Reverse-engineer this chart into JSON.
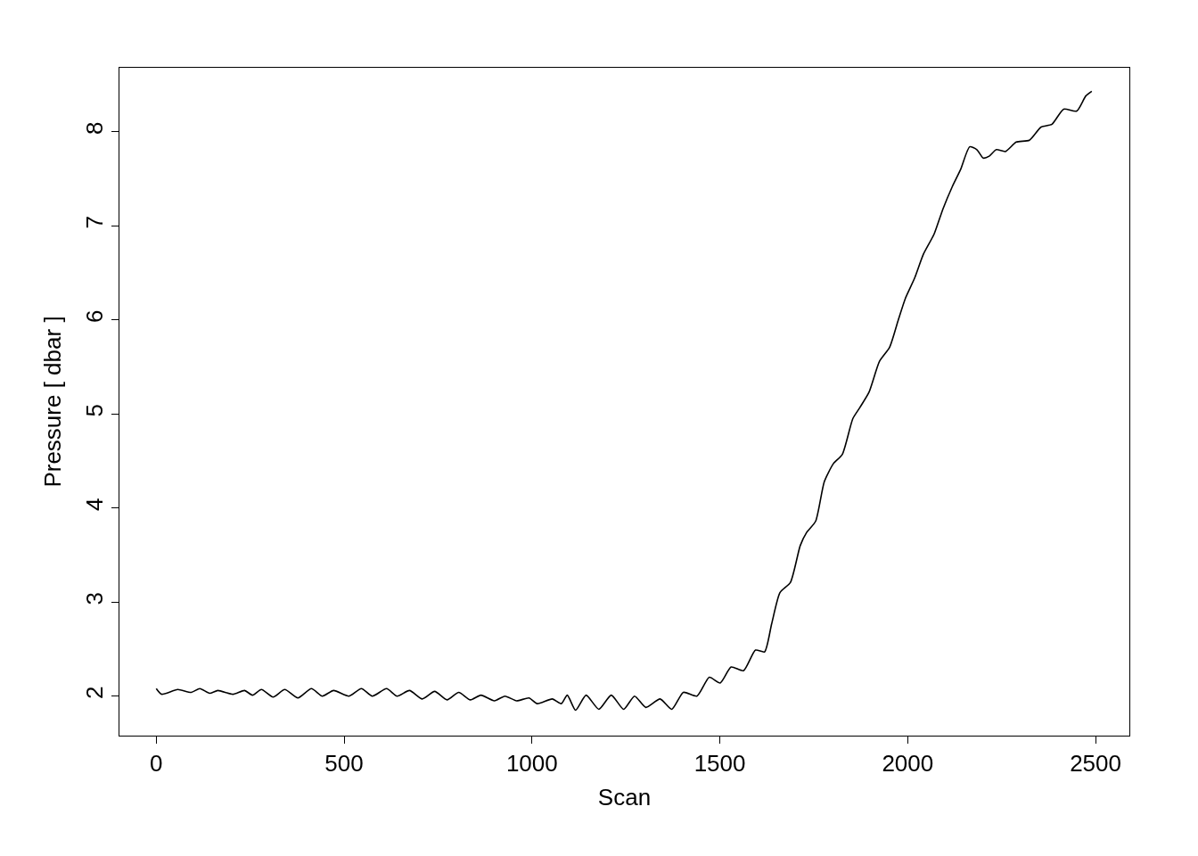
{
  "chart_data": {
    "type": "line",
    "xlabel": "Scan",
    "ylabel": "Pressure [ dbar ]",
    "color": "#000000",
    "x": [
      0,
      14,
      57,
      93,
      116,
      142,
      164,
      204,
      235,
      256,
      280,
      311,
      342,
      377,
      413,
      442,
      472,
      513,
      546,
      575,
      613,
      641,
      674,
      708,
      741,
      774,
      805,
      836,
      864,
      900,
      928,
      959,
      992,
      1014,
      1054,
      1078,
      1094,
      1116,
      1144,
      1178,
      1211,
      1244,
      1273,
      1303,
      1341,
      1372,
      1403,
      1439,
      1472,
      1501,
      1530,
      1563,
      1595,
      1619,
      1638,
      1660,
      1688,
      1714,
      1731,
      1755,
      1778,
      1802,
      1826,
      1854,
      1873,
      1897,
      1925,
      1952,
      1975,
      1994,
      2018,
      2042,
      2070,
      2094,
      2118,
      2141,
      2165,
      2184,
      2201,
      2217,
      2236,
      2260,
      2289,
      2324,
      2355,
      2384,
      2415,
      2450,
      2474,
      2490
    ],
    "values": [
      2.08,
      2.02,
      2.07,
      2.04,
      2.08,
      2.03,
      2.06,
      2.02,
      2.06,
      2.01,
      2.07,
      1.99,
      2.07,
      1.98,
      2.08,
      2.0,
      2.06,
      2.0,
      2.08,
      2.0,
      2.08,
      2.0,
      2.06,
      1.97,
      2.05,
      1.96,
      2.04,
      1.96,
      2.01,
      1.95,
      2.0,
      1.95,
      1.98,
      1.92,
      1.97,
      1.92,
      2.01,
      1.85,
      2.01,
      1.86,
      2.01,
      1.86,
      2.0,
      1.88,
      1.97,
      1.86,
      2.04,
      2.0,
      2.2,
      2.14,
      2.31,
      2.27,
      2.49,
      2.47,
      2.77,
      3.1,
      3.21,
      3.6,
      3.74,
      3.86,
      4.28,
      4.47,
      4.57,
      4.95,
      5.07,
      5.23,
      5.56,
      5.71,
      6.0,
      6.23,
      6.44,
      6.7,
      6.91,
      7.18,
      7.41,
      7.6,
      7.84,
      7.81,
      7.72,
      7.74,
      7.81,
      7.79,
      7.89,
      7.91,
      8.05,
      8.08,
      8.24,
      8.22,
      8.38,
      8.43
    ],
    "xlim": [
      -98,
      2590
    ],
    "ylim": [
      1.58,
      8.68
    ],
    "xticks": [
      0,
      500,
      1000,
      1500,
      2000,
      2500
    ],
    "yticks": [
      2,
      3,
      4,
      5,
      6,
      7,
      8
    ]
  }
}
